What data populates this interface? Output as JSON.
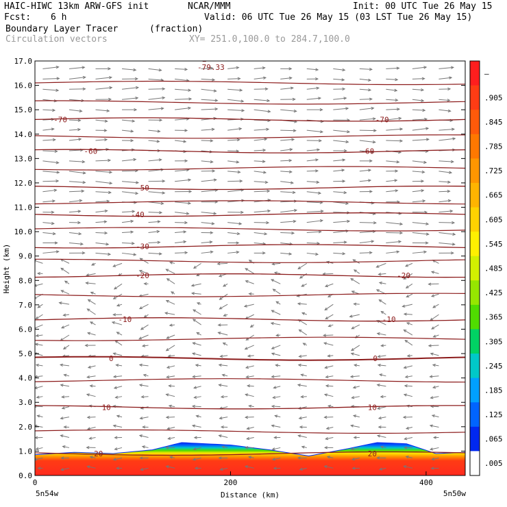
{
  "header": {
    "model": "HAIC-HIWC 13km ARW-GFS init",
    "org": "NCAR/MMM",
    "init": "Init: 00 UTC Tue 26 May 15",
    "fcst_label": "Fcst:",
    "fcst_value": "6 h",
    "valid": "Valid: 06 UTC Tue 26 May 15 (03 LST Tue 26 May 15)",
    "field1": "Boundary Layer Tracer",
    "field1_units": "(fraction)",
    "field2": "Circulation vectors",
    "cross_section": "XY= 251.0,100.0 to 284.7,100.0"
  },
  "chart_data": {
    "type": "heatmap",
    "xlabel": "Distance (km)",
    "ylabel": "Height (km)",
    "xlim": [
      0,
      440
    ],
    "ylim": [
      0,
      17
    ],
    "x_ticks": [
      "0",
      "200",
      "400"
    ],
    "y_ticks": [
      "0.0",
      "1.0",
      "2.0",
      "3.0",
      "4.0",
      "5.0",
      "6.0",
      "7.0",
      "8.0",
      "9.0",
      "10.0",
      "11.0",
      "12.0",
      "13.0",
      "14.0",
      "15.0",
      "16.0",
      "17.0"
    ],
    "x_end_labels": {
      "left": "5n54w",
      "right": "5n50w"
    },
    "colorbar": {
      "labels": [
        "–",
        ".905",
        ".845",
        ".785",
        ".725",
        ".665",
        ".605",
        ".545",
        ".485",
        ".425",
        ".365",
        ".305",
        ".245",
        ".185",
        ".125",
        ".065",
        ".005"
      ],
      "colors": [
        "#ff1e1e",
        "#ff3c14",
        "#ff5a0a",
        "#ff7800",
        "#ff9600",
        "#ffb400",
        "#ffd200",
        "#fff000",
        "#d2f000",
        "#96e600",
        "#50dc00",
        "#00d264",
        "#00c8c8",
        "#00a0ff",
        "#0064ff",
        "#0028f0",
        "#ffffff"
      ]
    },
    "temperature_contours": [
      {
        "label": "-70",
        "height": 14.6,
        "label_x": [
          26,
          355
        ]
      },
      {
        "label": "-60",
        "height": 13.3,
        "label_x": [
          57,
          340
        ]
      },
      {
        "label": "-50",
        "height": 11.8,
        "label_x": [
          110
        ]
      },
      {
        "label": "-40",
        "height": 10.7,
        "label_x": [
          105
        ]
      },
      {
        "label": "-30",
        "height": 9.4,
        "label_x": [
          110
        ]
      },
      {
        "label": "-20",
        "height": 8.2,
        "label_x": [
          110,
          377
        ]
      },
      {
        "label": "-10",
        "height": 6.4,
        "label_x": [
          92,
          362
        ]
      },
      {
        "label": "0",
        "height": 4.8,
        "label_x": [
          78,
          348
        ]
      },
      {
        "label": "10",
        "height": 2.8,
        "label_x": [
          73,
          345
        ]
      },
      {
        "label": "20",
        "height": 0.9,
        "label_x": [
          65,
          345
        ]
      }
    ],
    "low_marker": {
      "label": "L",
      "value": "-79.33",
      "x": 173,
      "height": 16.8
    },
    "tracer_top": [
      {
        "x": 0,
        "h": 0.85
      },
      {
        "x": 40,
        "h": 0.95
      },
      {
        "x": 80,
        "h": 0.9
      },
      {
        "x": 120,
        "h": 1.05
      },
      {
        "x": 150,
        "h": 1.35
      },
      {
        "x": 200,
        "h": 1.25
      },
      {
        "x": 240,
        "h": 1.05
      },
      {
        "x": 280,
        "h": 0.8
      },
      {
        "x": 320,
        "h": 1.1
      },
      {
        "x": 350,
        "h": 1.35
      },
      {
        "x": 380,
        "h": 1.3
      },
      {
        "x": 410,
        "h": 0.9
      },
      {
        "x": 440,
        "h": 0.95
      }
    ]
  }
}
